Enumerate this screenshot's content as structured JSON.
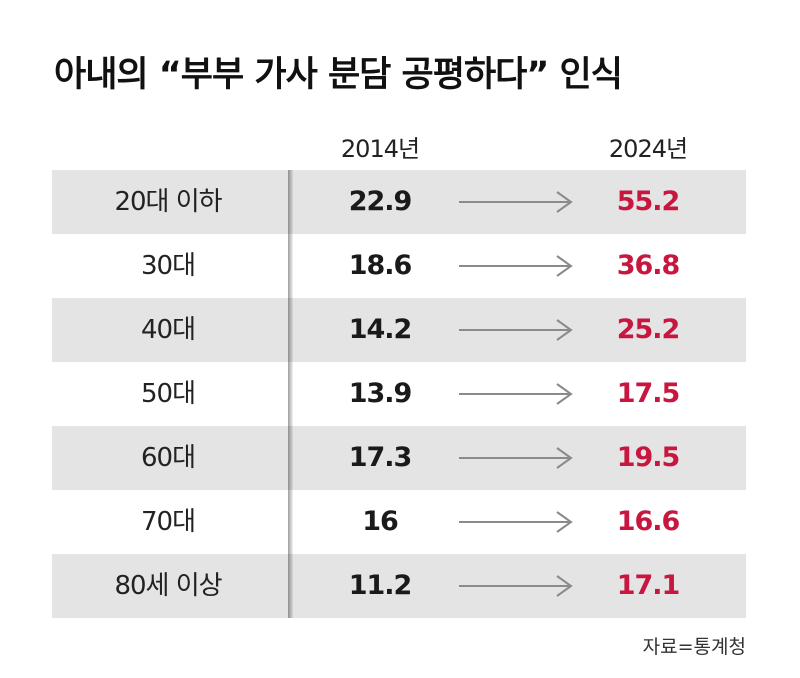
{
  "chart_data": {
    "type": "table",
    "title": "아내의 “부부 가사 분담 공평하다” 인식",
    "columns": [
      "2014년",
      "2024년"
    ],
    "rows": [
      {
        "label": "20대 이하",
        "v2014": "22.9",
        "v2024": "55.2"
      },
      {
        "label": "30대",
        "v2014": "18.6",
        "v2024": "36.8"
      },
      {
        "label": "40대",
        "v2014": "14.2",
        "v2024": "25.2"
      },
      {
        "label": "50대",
        "v2014": "13.9",
        "v2024": "17.5"
      },
      {
        "label": "60대",
        "v2014": "17.3",
        "v2024": "19.5"
      },
      {
        "label": "70대",
        "v2014": "16",
        "v2024": "16.6"
      },
      {
        "label": "80세 이상",
        "v2014": "11.2",
        "v2024": "17.1"
      }
    ],
    "source": "자료=통계청"
  },
  "colors": {
    "highlight": "#c8163f",
    "row_shade": "#e4e4e4",
    "arrow": "#8a8a8a"
  }
}
